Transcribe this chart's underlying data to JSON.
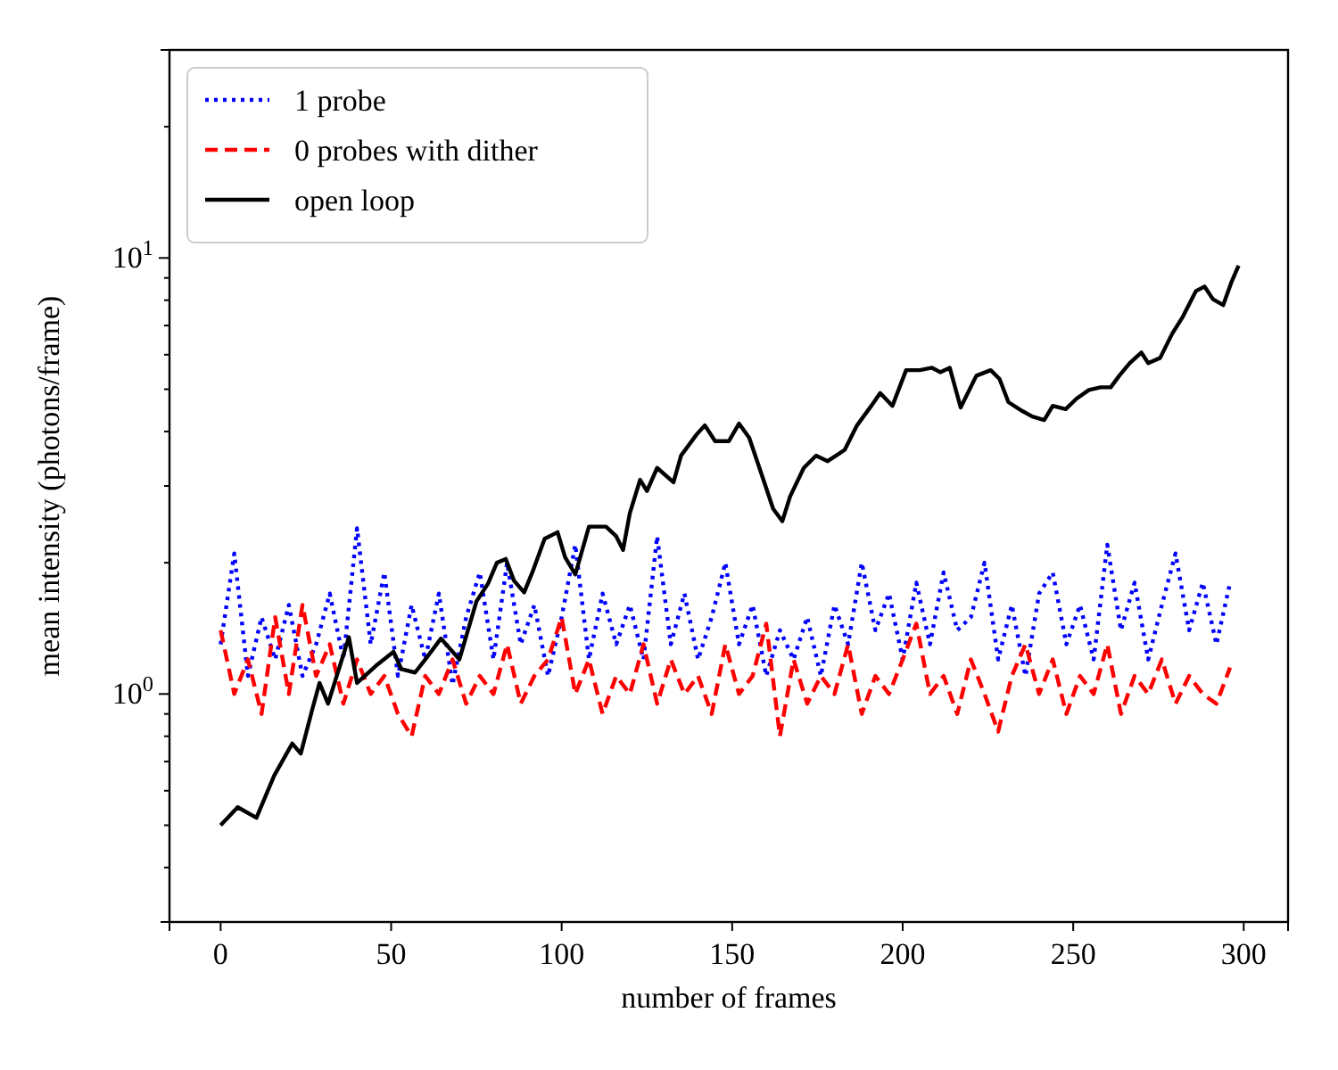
{
  "chart_data": {
    "type": "line",
    "xlabel": "number of frames",
    "ylabel": "mean intensity (photons/frame)",
    "log": "y",
    "xlim": [
      -15,
      313
    ],
    "ylim": [
      0.3,
      30
    ],
    "xticks": [
      0,
      50,
      100,
      150,
      200,
      250,
      300
    ],
    "yticks": [
      {
        "value": 0.4,
        "label": null
      },
      {
        "value": 0.5,
        "label": null
      },
      {
        "value": 0.6,
        "label": null
      },
      {
        "value": 0.7,
        "label": null
      },
      {
        "value": 0.8,
        "label": null
      },
      {
        "value": 0.9,
        "label": null
      },
      {
        "value": 1,
        "label": "10$^{0}$"
      },
      {
        "value": 2,
        "label": null
      },
      {
        "value": 3,
        "label": null
      },
      {
        "value": 4,
        "label": null
      },
      {
        "value": 5,
        "label": null
      },
      {
        "value": 6,
        "label": null
      },
      {
        "value": 7,
        "label": null
      },
      {
        "value": 8,
        "label": null
      },
      {
        "value": 9,
        "label": null
      },
      {
        "value": 10,
        "label": "10$^{1}$"
      },
      {
        "value": 20,
        "label": null
      }
    ],
    "grid": false,
    "legend": "top left",
    "x": [
      0,
      4,
      8,
      12,
      16,
      20,
      24,
      28,
      32,
      36,
      40,
      44,
      48,
      52,
      56,
      60,
      64,
      68,
      72,
      76,
      80,
      84,
      88,
      92,
      96,
      100,
      104,
      108,
      112,
      116,
      120,
      124,
      128,
      132,
      136,
      140,
      144,
      148,
      152,
      156,
      160,
      164,
      168,
      172,
      176,
      180,
      184,
      188,
      192,
      196,
      200,
      204,
      208,
      212,
      216,
      220,
      224,
      228,
      232,
      236,
      240,
      244,
      248,
      252,
      256,
      260,
      264,
      268,
      272,
      276,
      280,
      284,
      288,
      292,
      296
    ],
    "series": [
      {
        "name": "1 probe",
        "color": "#0000ff",
        "line_style": "dotted",
        "values": [
          1.3,
          2.1,
          1.1,
          1.5,
          1.2,
          1.6,
          1.1,
          1.3,
          1.7,
          1.2,
          2.4,
          1.3,
          1.9,
          1.1,
          1.6,
          1.2,
          1.7,
          1.05,
          1.5,
          1.9,
          1.2,
          2.0,
          1.3,
          1.6,
          1.1,
          1.5,
          2.2,
          1.2,
          1.7,
          1.3,
          1.6,
          1.2,
          2.3,
          1.3,
          1.7,
          1.2,
          1.5,
          2.0,
          1.3,
          1.6,
          1.1,
          1.4,
          1.2,
          1.5,
          1.1,
          1.6,
          1.3,
          2.0,
          1.4,
          1.7,
          1.2,
          1.8,
          1.3,
          1.9,
          1.4,
          1.5,
          2.0,
          1.2,
          1.6,
          1.1,
          1.7,
          1.9,
          1.3,
          1.6,
          1.2,
          2.2,
          1.4,
          1.8,
          1.2,
          1.6,
          2.1,
          1.4,
          1.8,
          1.3,
          1.8
        ]
      },
      {
        "name": "0 probes with dither",
        "color": "#ff0000",
        "line_style": "dashed",
        "values": [
          1.4,
          1.0,
          1.2,
          0.9,
          1.5,
          1.0,
          1.6,
          1.1,
          1.3,
          0.95,
          1.2,
          1.0,
          1.1,
          0.9,
          0.8,
          1.1,
          1.0,
          1.2,
          0.95,
          1.1,
          1.0,
          1.3,
          0.95,
          1.1,
          1.2,
          1.5,
          1.0,
          1.2,
          0.9,
          1.1,
          1.0,
          1.3,
          0.95,
          1.2,
          1.0,
          1.1,
          0.9,
          1.3,
          1.0,
          1.1,
          1.45,
          0.8,
          1.2,
          0.95,
          1.1,
          1.0,
          1.3,
          0.9,
          1.1,
          1.0,
          1.2,
          1.45,
          1.0,
          1.1,
          0.9,
          1.2,
          1.0,
          0.82,
          1.1,
          1.3,
          1.0,
          1.2,
          0.9,
          1.1,
          1.0,
          1.3,
          0.9,
          1.1,
          1.0,
          1.2,
          0.95,
          1.1,
          1.0,
          0.95,
          1.15
        ]
      },
      {
        "name": "open loop",
        "color": "#000000",
        "line_style": "solid",
        "x": [
          0,
          5,
          10.5,
          15.7,
          21,
          23.5,
          27,
          29,
          31.5,
          37.6,
          40,
          45.5,
          50.7,
          53,
          57,
          60,
          64.6,
          70,
          75,
          78.4,
          81,
          83.6,
          86,
          89,
          91.5,
          95,
          98.8,
          101,
          104,
          108,
          113,
          116,
          118,
          120,
          123,
          125,
          128,
          132.8,
          135,
          139.6,
          142,
          145,
          149,
          152,
          155,
          159.4,
          162,
          164.7,
          167,
          171,
          174.6,
          178,
          183,
          186.6,
          190.8,
          193.4,
          197,
          201,
          205,
          208.6,
          211,
          213.8,
          217,
          221.6,
          225.8,
          228.4,
          231,
          235,
          238,
          241.5,
          244,
          247.8,
          251,
          254.6,
          258,
          261,
          263.5,
          266.6,
          270,
          272,
          275.5,
          279,
          282,
          286,
          288.5,
          291,
          294,
          296.4,
          298.5
        ],
        "values": [
          0.5,
          0.55,
          0.52,
          0.65,
          0.77,
          0.73,
          0.93,
          1.06,
          0.95,
          1.35,
          1.06,
          1.16,
          1.25,
          1.14,
          1.12,
          1.2,
          1.34,
          1.2,
          1.63,
          1.79,
          2.0,
          2.04,
          1.82,
          1.71,
          1.91,
          2.27,
          2.35,
          2.06,
          1.88,
          2.42,
          2.42,
          2.3,
          2.14,
          2.6,
          3.1,
          2.92,
          3.3,
          3.06,
          3.52,
          3.94,
          4.13,
          3.8,
          3.8,
          4.17,
          3.87,
          3.06,
          2.66,
          2.49,
          2.84,
          3.3,
          3.52,
          3.42,
          3.63,
          4.13,
          4.58,
          4.9,
          4.58,
          5.53,
          5.53,
          5.6,
          5.47,
          5.6,
          4.54,
          5.37,
          5.53,
          5.28,
          4.67,
          4.46,
          4.33,
          4.25,
          4.58,
          4.5,
          4.76,
          4.98,
          5.05,
          5.05,
          5.37,
          5.74,
          6.07,
          5.74,
          5.9,
          6.7,
          7.3,
          8.4,
          8.6,
          8.04,
          7.8,
          8.8,
          9.6
        ]
      }
    ]
  }
}
